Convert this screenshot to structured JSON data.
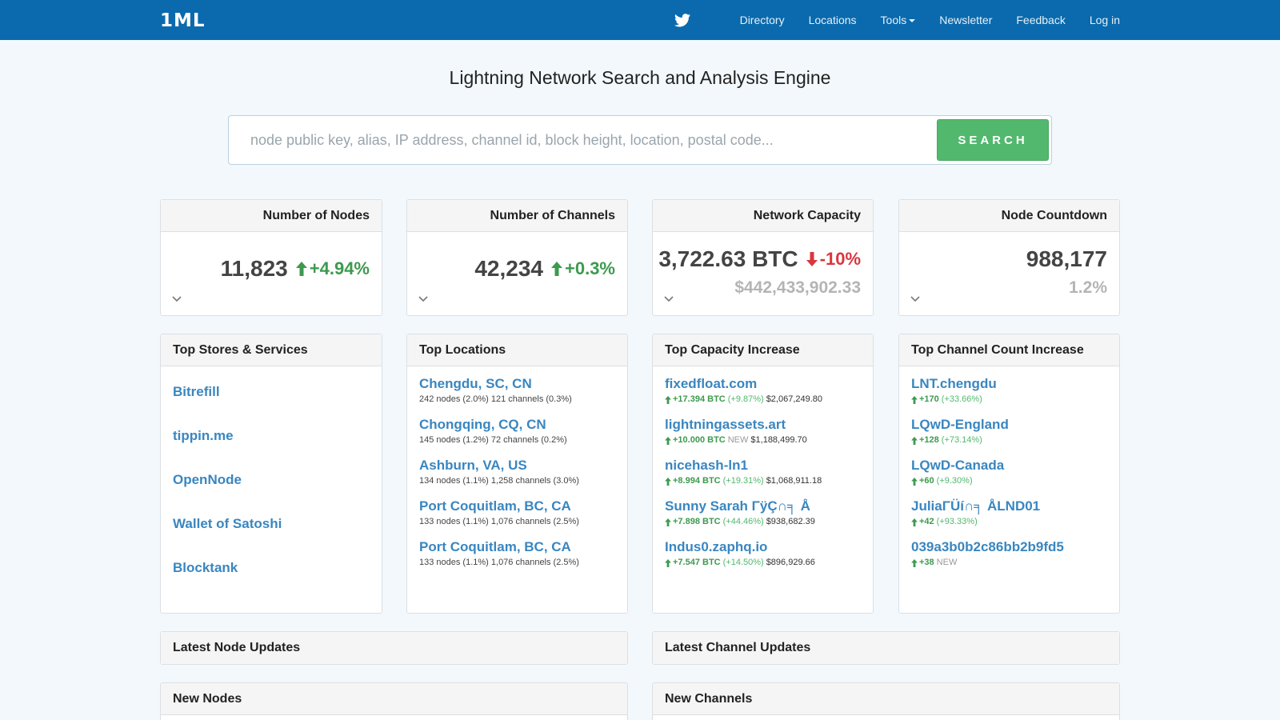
{
  "nav": {
    "brand": "1ML",
    "links": [
      "Directory",
      "Locations",
      "Tools",
      "Newsletter",
      "Feedback",
      "Log in"
    ]
  },
  "hero": {
    "title": "Lightning Network Search and Analysis Engine",
    "search_placeholder": "node public key, alias, IP address, channel id, block height, location, postal code...",
    "search_button": "SEARCH"
  },
  "stats": {
    "nodes": {
      "title": "Number of Nodes",
      "value": "11,823",
      "change": "+4.94%"
    },
    "channels": {
      "title": "Number of Channels",
      "value": "42,234",
      "change": "+0.3%"
    },
    "capacity": {
      "title": "Network Capacity",
      "value": "3,722.63 BTC",
      "change": "-10%",
      "usd": "$442,433,902.33"
    },
    "countdown": {
      "title": "Node Countdown",
      "value": "988,177",
      "percent": "1.2%"
    }
  },
  "stores": {
    "title": "Top Stores & Services",
    "items": [
      "Bitrefill",
      "tippin.me",
      "OpenNode",
      "Wallet of Satoshi",
      "Blocktank"
    ]
  },
  "locations": {
    "title": "Top Locations",
    "items": [
      {
        "name": "Chengdu, SC, CN",
        "meta": "242 nodes (2.0%) 121 channels (0.3%)"
      },
      {
        "name": "Chongqing, CQ, CN",
        "meta": "145 nodes (1.2%) 72 channels (0.2%)"
      },
      {
        "name": "Ashburn, VA, US",
        "meta": "134 nodes (1.1%) 1,258 channels (3.0%)"
      },
      {
        "name": "Port Coquitlam, BC, CA",
        "meta": "133 nodes (1.1%) 1,076 channels (2.5%)"
      },
      {
        "name": "Port Coquitlam, BC, CA",
        "meta": "133 nodes (1.1%) 1,076 channels (2.5%)"
      }
    ]
  },
  "capacity_increase": {
    "title": "Top Capacity Increase",
    "items": [
      {
        "name": "fixedfloat.com",
        "delta": "+17.394 BTC",
        "pct": "(+9.87%)",
        "usd": "$2,067,249.80"
      },
      {
        "name": "lightningassets.art",
        "delta": "+10.000 BTC",
        "pct": "NEW",
        "usd": "$1,188,499.70"
      },
      {
        "name": "nicehash-ln1",
        "delta": "+8.994 BTC",
        "pct": "(+19.31%)",
        "usd": "$1,068,911.18"
      },
      {
        "name": "Sunny Sarah ΓÿÇ∩╕ Å",
        "delta": "+7.898 BTC",
        "pct": "(+44.46%)",
        "usd": "$938,682.39"
      },
      {
        "name": "Indus0.zaphq.io",
        "delta": "+7.547 BTC",
        "pct": "(+14.50%)",
        "usd": "$896,929.66"
      }
    ]
  },
  "channel_increase": {
    "title": "Top Channel Count Increase",
    "items": [
      {
        "name": "LNT.chengdu",
        "delta": "+170",
        "pct": "(+33.66%)"
      },
      {
        "name": "LQwD-England",
        "delta": "+128",
        "pct": "(+73.14%)"
      },
      {
        "name": "LQwD-Canada",
        "delta": "+60",
        "pct": "(+9.30%)"
      },
      {
        "name": "JuliaΓÜí∩╕ ÅLND01",
        "delta": "+42",
        "pct": "(+93.33%)"
      },
      {
        "name": "039a3b0b2c86bb2b9fd5",
        "delta": "+38",
        "pct": "NEW"
      }
    ]
  },
  "sections": {
    "latest_node_updates": "Latest Node Updates",
    "latest_channel_updates": "Latest Channel Updates",
    "new_nodes": "New Nodes",
    "new_channels": "New Channels"
  },
  "colors": {
    "navbar": "#0a6aad",
    "link": "#3986c0",
    "positive": "#3c9a4e",
    "negative": "#d9363e",
    "search_button": "#52b86e"
  }
}
